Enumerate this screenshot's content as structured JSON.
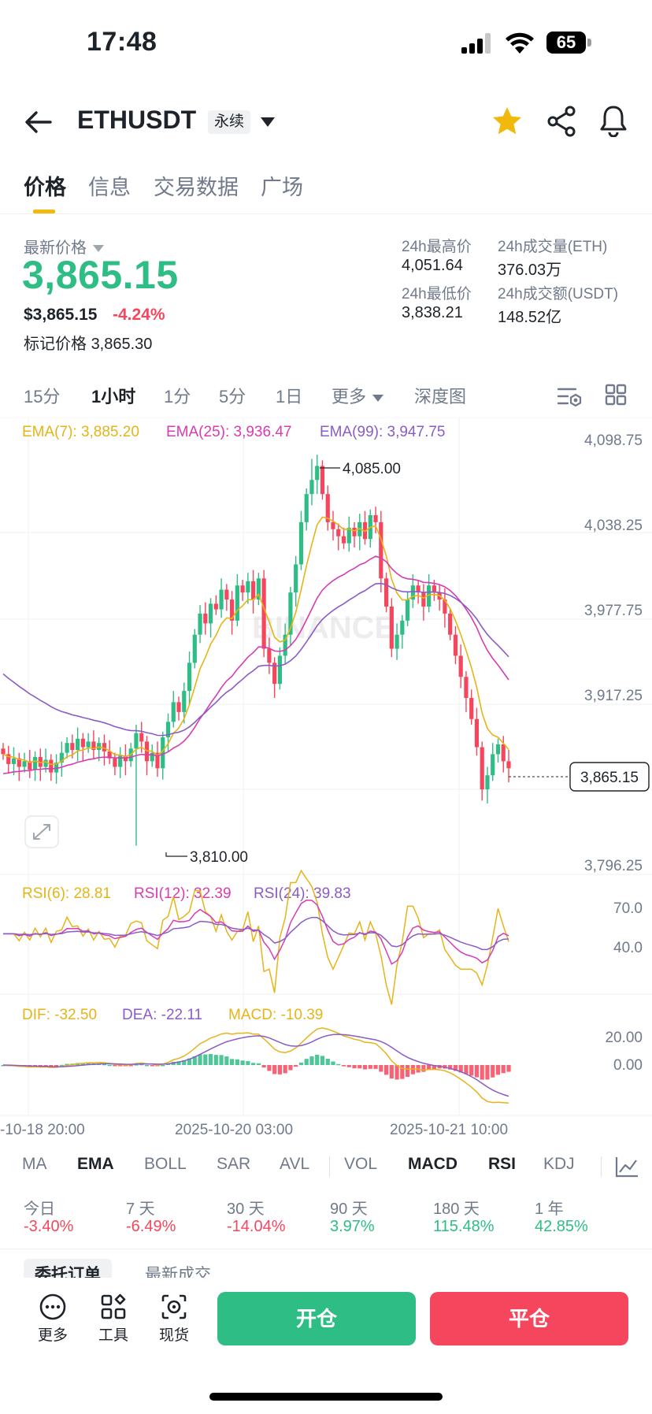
{
  "status_bar": {
    "time": "17:48",
    "battery": "65"
  },
  "header": {
    "symbol": "ETHUSDT",
    "badge": "永续"
  },
  "tabs": [
    {
      "label": "价格"
    },
    {
      "label": "信息"
    },
    {
      "label": "交易数据"
    },
    {
      "label": "广场"
    }
  ],
  "price": {
    "last_label": "最新价格",
    "last": "3,865.15",
    "usd": "$3,865.15",
    "change": "-4.24%",
    "mark_label": "标记价格",
    "mark_value": "3,865.30",
    "high_label": "24h最高价",
    "high_value": "4,051.64",
    "low_label": "24h最低价",
    "low_value": "3,838.21",
    "vol_eth_label": "24h成交量(ETH)",
    "vol_eth_value": "376.03万",
    "vol_usdt_label": "24h成交额(USDT)",
    "vol_usdt_value": "148.52亿"
  },
  "intervals": [
    {
      "label": "15分"
    },
    {
      "label": "1小时"
    },
    {
      "label": "1分"
    },
    {
      "label": "5分"
    },
    {
      "label": "1日"
    },
    {
      "label": "更多"
    },
    {
      "label": "深度图"
    }
  ],
  "chart_data": {
    "type": "candlestick",
    "ema_legend": [
      {
        "label": "EMA(7): 3,885.20",
        "color": "#e6b417"
      },
      {
        "label": "EMA(25): 3,936.47",
        "color": "#d63cb4"
      },
      {
        "label": "EMA(99): 3,947.75",
        "color": "#8a5cc6"
      }
    ],
    "y_ticks": [
      "4,098.75",
      "4,038.25",
      "3,977.75",
      "3,917.25",
      "3,796.25"
    ],
    "high_label": "4,085.00",
    "low_label": "3,810.00",
    "current_price": "3,865.15",
    "watermark": "BINANCE",
    "rsi_legend": [
      {
        "label": "RSI(6): 28.81",
        "color": "#e6b417"
      },
      {
        "label": "RSI(12): 32.39",
        "color": "#d63cb4"
      },
      {
        "label": "RSI(24): 39.83",
        "color": "#8a5cc6"
      }
    ],
    "rsi_ticks": [
      "70.0",
      "40.0"
    ],
    "macd_legend": [
      {
        "label": "DIF: -32.50",
        "color": "#e6b417"
      },
      {
        "label": "DEA: -22.11",
        "color": "#8a5cc6"
      },
      {
        "label": "MACD: -10.39",
        "color": "#e6b417"
      }
    ],
    "macd_ticks": [
      "20.00",
      "0.00"
    ],
    "x_labels": [
      "-10-18 20:00",
      "2025-10-20 03:00",
      "2025-10-21 10:00"
    ],
    "colors": {
      "up": "#2ebd85",
      "down": "#f6465d"
    }
  },
  "indicators": [
    {
      "label": "MA"
    },
    {
      "label": "EMA"
    },
    {
      "label": "BOLL"
    },
    {
      "label": "SAR"
    },
    {
      "label": "AVL"
    },
    {
      "label": "VOL"
    },
    {
      "label": "MACD"
    },
    {
      "label": "RSI"
    },
    {
      "label": "KDJ"
    }
  ],
  "performance": [
    {
      "period": "今日",
      "value": "-3.40%"
    },
    {
      "period": "7 天",
      "value": "-6.49%"
    },
    {
      "period": "30 天",
      "value": "-14.04%"
    },
    {
      "period": "90 天",
      "value": "3.97%"
    },
    {
      "period": "180 天",
      "value": "115.48%"
    },
    {
      "period": "1 年",
      "value": "42.85%"
    }
  ],
  "orderbook_tabs": [
    {
      "label": "委托订单"
    },
    {
      "label": "最新成交"
    }
  ],
  "bottom": {
    "more": "更多",
    "tools": "工具",
    "spot": "现货",
    "open": "开仓",
    "close": "平仓"
  }
}
